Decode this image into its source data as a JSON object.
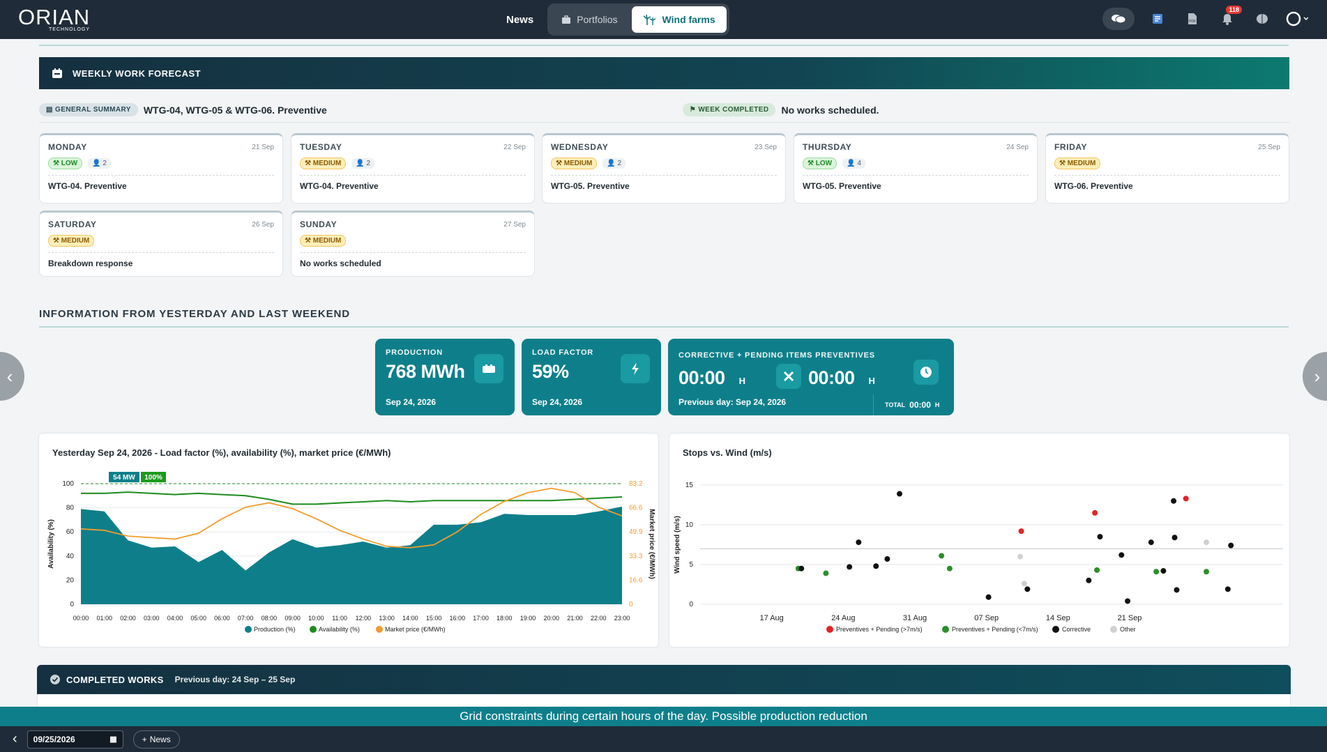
{
  "header": {
    "logo": "ORIAN",
    "logo_sub": "TECHNOLOGY",
    "news": "News",
    "tabs": [
      {
        "label": "Portfolios"
      },
      {
        "label": "Wind farms"
      }
    ],
    "notifications": "118"
  },
  "forecast": {
    "title": "WEEKLY WORK FORECAST",
    "summary_chip": "GENERAL SUMMARY",
    "summary_text": "WTG-04, WTG-05 & WTG-06. Preventive",
    "week_chip": "WEEK COMPLETED",
    "week_text": "No works scheduled.",
    "days": [
      {
        "name": "MONDAY",
        "date": "21 Sep",
        "level": "LOW",
        "people": "2",
        "work": "WTG-04. Preventive"
      },
      {
        "name": "TUESDAY",
        "date": "22 Sep",
        "level": "MEDIUM",
        "people": "2",
        "work": "WTG-04. Preventive"
      },
      {
        "name": "WEDNESDAY",
        "date": "23 Sep",
        "level": "MEDIUM",
        "people": "2",
        "work": "WTG-05. Preventive"
      },
      {
        "name": "THURSDAY",
        "date": "24 Sep",
        "level": "LOW",
        "people": "4",
        "work": "WTG-05. Preventive"
      },
      {
        "name": "FRIDAY",
        "date": "25 Sep",
        "level": "MEDIUM",
        "people": "",
        "work": "WTG-06. Preventive"
      },
      {
        "name": "SATURDAY",
        "date": "26 Sep",
        "level": "MEDIUM",
        "people": "",
        "work": "Breakdown response"
      },
      {
        "name": "SUNDAY",
        "date": "27 Sep",
        "level": "MEDIUM",
        "people": "",
        "work": "No works scheduled"
      }
    ]
  },
  "info": {
    "title": "INFORMATION FROM YESTERDAY AND LAST WEEKEND"
  },
  "kpis": {
    "production": {
      "label": "PRODUCTION",
      "value": "768 MWh",
      "date": "Sep 24, 2026"
    },
    "load_factor": {
      "label": "LOAD FACTOR",
      "value": "59%",
      "date": "Sep 24, 2026"
    },
    "corrective": {
      "label": "CORRECTIVE + PENDING ITEMS PREVENTIVES",
      "value1": "00:00",
      "unit1": "H",
      "value2": "00:00",
      "unit2": "H",
      "prev": "Previous day: Sep 24, 2026",
      "total_label": "TOTAL",
      "total_value": "00:00",
      "total_unit": "H"
    }
  },
  "chart1_title": "Yesterday Sep 24, 2026 - Load factor (%), availability (%), market price (€/MWh)",
  "chart2_title": "Stops vs. Wind (m/s)",
  "chart_data": [
    {
      "type": "area",
      "title": "Yesterday Sep 24, 2026 - Load factor (%), availability (%), market price (€/MWh)",
      "x": [
        "00:00",
        "01:00",
        "02:00",
        "03:00",
        "04:00",
        "05:00",
        "06:00",
        "07:00",
        "08:00",
        "09:00",
        "10:00",
        "11:00",
        "12:00",
        "13:00",
        "14:00",
        "15:00",
        "16:00",
        "17:00",
        "18:00",
        "19:00",
        "20:00",
        "21:00",
        "22:00",
        "23:00"
      ],
      "ylabel": "Availability (%)",
      "y2label": "Market price (€/MWh)",
      "ylim": [
        0,
        100
      ],
      "y2lim": [
        0,
        83.2
      ],
      "yticks": [
        "100",
        "80",
        "60",
        "40",
        "20",
        "0"
      ],
      "y2ticks": [
        "83.2",
        "66.6",
        "49.9",
        "33.3",
        "16.6",
        "0"
      ],
      "annotations": [
        "54 MW",
        "100%"
      ],
      "series": [
        {
          "name": "Production (%)",
          "color": "#0e7f8a",
          "values": [
            79,
            77,
            53,
            47,
            48,
            35,
            45,
            28,
            43,
            54,
            47,
            49,
            52,
            47,
            49,
            66,
            66,
            68,
            75,
            74,
            74,
            74,
            77,
            81
          ]
        },
        {
          "name": "Availability (%)",
          "color": "#1d8b1d",
          "values": [
            92,
            92,
            93,
            92,
            91,
            92,
            91,
            90,
            87,
            83,
            83,
            84,
            85,
            86,
            85,
            86,
            86,
            86,
            86,
            86,
            86,
            87,
            88,
            89
          ]
        },
        {
          "name": "Market price (€/MWh)",
          "color": "#f39c2c",
          "values": [
            52,
            51,
            47,
            46,
            45,
            49,
            59,
            67,
            70,
            66,
            59,
            51,
            45,
            40,
            39,
            41,
            50,
            62,
            71,
            77,
            80,
            77,
            67,
            61
          ]
        }
      ]
    },
    {
      "type": "scatter",
      "title": "Stops vs. Wind (m/s)",
      "ylabel": "Wind speed (m/s)",
      "ylim": [
        0,
        15
      ],
      "yticks": [
        "15",
        "10",
        "5",
        "0"
      ],
      "xticks": [
        "17 Aug",
        "24 Aug",
        "31 Aug",
        "07 Sep",
        "14 Sep",
        "21 Sep"
      ],
      "series": [
        {
          "name": "Preventives + Pending (>7m/s)",
          "color": "#e52323",
          "points": [
            [
              31.4,
              9.2
            ],
            [
              38.6,
              11.5
            ],
            [
              47.5,
              13.3
            ]
          ]
        },
        {
          "name": "Preventives + Pending (<7m/s)",
          "color": "#2a8f2a",
          "points": [
            [
              9.6,
              4.5
            ],
            [
              12.3,
              3.9
            ],
            [
              23.6,
              6.1
            ],
            [
              24.4,
              4.5
            ],
            [
              38.8,
              4.3
            ],
            [
              44.6,
              4.1
            ],
            [
              49.5,
              4.1
            ]
          ]
        },
        {
          "name": "Corrective",
          "color": "#111111",
          "points": [
            [
              9.9,
              4.5
            ],
            [
              14.6,
              4.7
            ],
            [
              15.5,
              7.8
            ],
            [
              17.2,
              4.8
            ],
            [
              18.3,
              5.7
            ],
            [
              19.5,
              13.9
            ],
            [
              28.2,
              0.9
            ],
            [
              32.0,
              1.9
            ],
            [
              38.0,
              3.0
            ],
            [
              39.1,
              8.5
            ],
            [
              41.2,
              6.2
            ],
            [
              41.8,
              0.4
            ],
            [
              44.1,
              7.8
            ],
            [
              45.3,
              4.2
            ],
            [
              46.3,
              13.0
            ],
            [
              46.4,
              8.4
            ],
            [
              46.6,
              1.8
            ],
            [
              51.6,
              1.9
            ],
            [
              51.9,
              7.4
            ]
          ]
        },
        {
          "name": "Other",
          "color": "#d0d0d0",
          "points": [
            [
              31.3,
              6.0
            ],
            [
              31.7,
              2.6
            ],
            [
              49.5,
              7.8
            ]
          ]
        }
      ]
    }
  ],
  "completed": {
    "title": "COMPLETED WORKS",
    "subtitle": "Previous day: 24 Sep – 25 Sep"
  },
  "ticker": "Grid constraints during certain hours of the day. Possible production reduction",
  "bottom": {
    "date": "09/25/2026",
    "news": "News"
  }
}
